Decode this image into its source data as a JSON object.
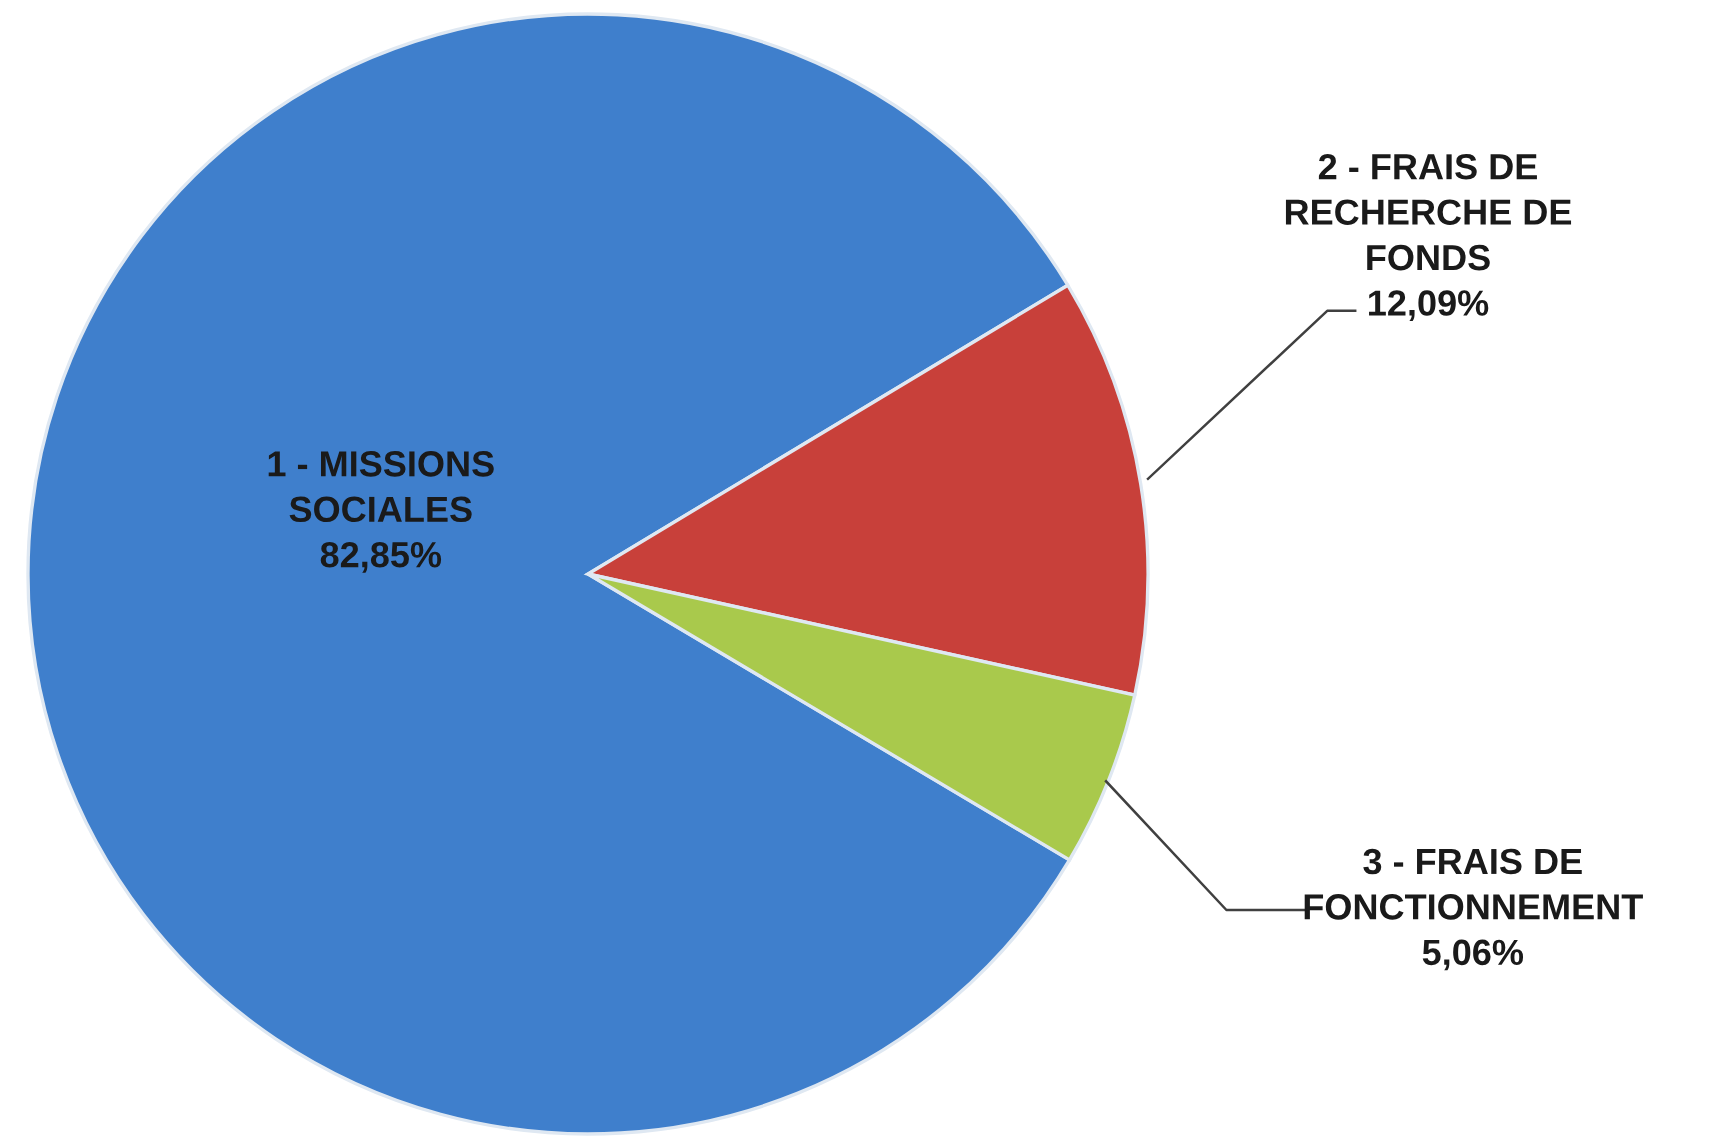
{
  "chart_data": {
    "type": "pie",
    "categories": [
      "1 - MISSIONS SOCIALES",
      "2 - FRAIS DE RECHERCHE DE FONDS",
      "3 - FRAIS DE FONCTIONNEMENT"
    ],
    "values": [
      82.85,
      12.09,
      5.06
    ],
    "value_labels": [
      "82,85%",
      "12,09%",
      "5,06%"
    ],
    "colors": [
      "#3f7fcc",
      "#c8403a",
      "#a9c94c"
    ],
    "legend": false
  }
}
